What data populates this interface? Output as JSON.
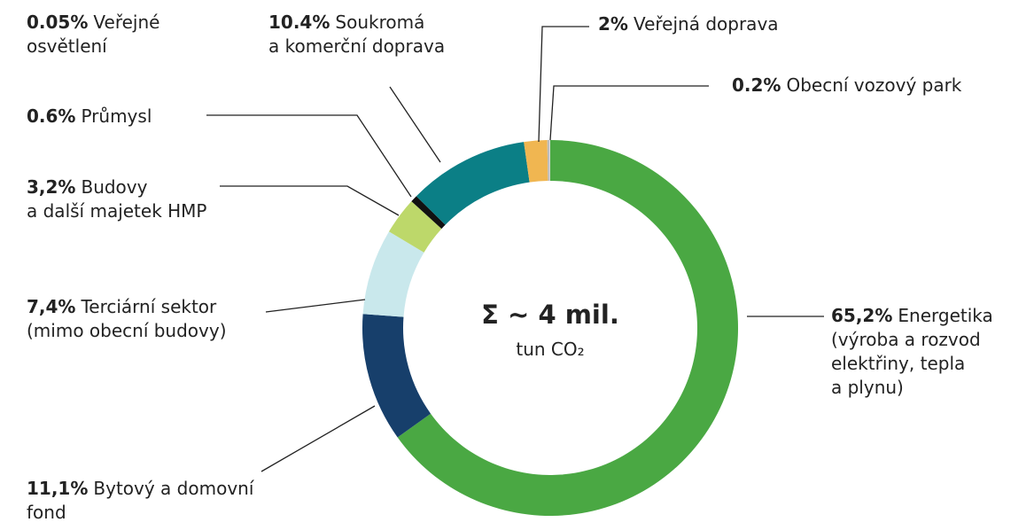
{
  "chart_data": {
    "type": "pie",
    "donut": true,
    "center_title": "Σ ~ 4 mil.",
    "center_subtitle": "tun CO₂",
    "categories": [
      "Energetika\n(výroba a rozvod\nelektřiny, tepla\na plynu)",
      "Bytový a domovní\nfond",
      "Terciární sektor\n(mimo obecní budovy)",
      "Budovy\na další majetek HMP",
      "Průmysl",
      "Soukromá\na komerční doprava",
      "Veřejná doprava",
      "Obecní vozový park",
      "Veřejné\nosvětlení"
    ],
    "values": [
      65.2,
      11.1,
      7.4,
      3.2,
      0.6,
      10.4,
      2,
      0.2,
      0.05
    ],
    "value_labels": [
      "65,2%",
      "11,1%",
      "7,4%",
      "3,2%",
      "0.6%",
      "10.4%",
      "2%",
      "0.2%",
      "0.05%"
    ],
    "colors": [
      "#4aa843",
      "#173f6b",
      "#c9e8ec",
      "#bdd86a",
      "#111111",
      "#0b7f86",
      "#f0b651",
      "#bdbdbd",
      "#e6e6e6"
    ]
  }
}
